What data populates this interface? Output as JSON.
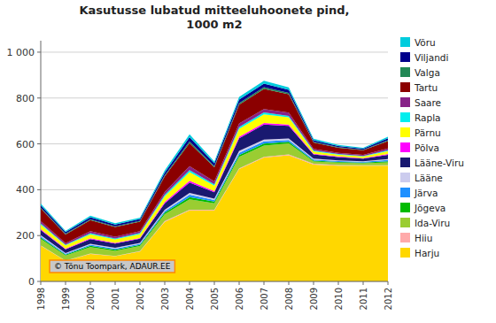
{
  "chart_data": {
    "type": "area",
    "stacked": true,
    "title": "Kasutusse lubatud mitteeluhoonete pind,\n1000 m2",
    "x": [
      1998,
      1999,
      2000,
      2001,
      2002,
      2003,
      2004,
      2005,
      2006,
      2007,
      2008,
      2009,
      2010,
      2011,
      2012
    ],
    "xlim": [
      1998,
      2012
    ],
    "xticks": [
      1998,
      1999,
      2000,
      2001,
      2002,
      2003,
      2004,
      2005,
      2006,
      2007,
      2008,
      2009,
      2010,
      2011,
      2012
    ],
    "ylim": [
      0,
      1050
    ],
    "yticks": [
      0,
      200,
      400,
      600,
      800,
      {
        "value": 1000,
        "label": "1 000"
      }
    ],
    "grid": true,
    "legend": "right",
    "annotations": [
      "© Tõnu Toompark, ADAUR.EE"
    ],
    "series": [
      {
        "name": "Harju",
        "color": "#FFD700",
        "values": [
          155,
          90,
          120,
          110,
          130,
          260,
          310,
          310,
          490,
          540,
          550,
          510,
          505,
          505,
          505
        ]
      },
      {
        "name": "Hiiu",
        "color": "#FFAAAA",
        "values": [
          2,
          1,
          2,
          1,
          2,
          3,
          3,
          3,
          3,
          3,
          4,
          3,
          3,
          2,
          2
        ]
      },
      {
        "name": "Ida-Viru",
        "color": "#9ACD32",
        "values": [
          28,
          22,
          28,
          22,
          22,
          30,
          45,
          28,
          50,
          50,
          48,
          10,
          10,
          8,
          12
        ]
      },
      {
        "name": "Jõgeva",
        "color": "#00BB00",
        "values": [
          6,
          4,
          5,
          5,
          5,
          7,
          10,
          7,
          8,
          8,
          7,
          4,
          3,
          3,
          5
        ]
      },
      {
        "name": "Järva",
        "color": "#1E90FF",
        "values": [
          6,
          4,
          5,
          5,
          5,
          7,
          10,
          7,
          10,
          10,
          8,
          5,
          4,
          4,
          6
        ]
      },
      {
        "name": "Lääne",
        "color": "#CCCCEE",
        "values": [
          5,
          3,
          4,
          4,
          4,
          6,
          8,
          6,
          8,
          8,
          6,
          4,
          3,
          2,
          4
        ]
      },
      {
        "name": "Lääne-Viru",
        "color": "#191970",
        "values": [
          22,
          16,
          20,
          18,
          18,
          28,
          45,
          28,
          55,
          65,
          55,
          18,
          14,
          12,
          18
        ]
      },
      {
        "name": "Põlva",
        "color": "#FF00FF",
        "values": [
          4,
          3,
          4,
          3,
          3,
          5,
          8,
          5,
          7,
          7,
          6,
          3,
          3,
          2,
          4
        ]
      },
      {
        "name": "Pärnu",
        "color": "#FFFF00",
        "values": [
          20,
          14,
          18,
          15,
          18,
          26,
          38,
          24,
          35,
          38,
          32,
          10,
          8,
          7,
          12
        ]
      },
      {
        "name": "Rapla",
        "color": "#00EEEE",
        "values": [
          5,
          3,
          4,
          4,
          4,
          6,
          8,
          6,
          8,
          8,
          6,
          4,
          3,
          2,
          4
        ]
      },
      {
        "name": "Saare",
        "color": "#882288",
        "values": [
          10,
          7,
          9,
          8,
          8,
          12,
          18,
          12,
          15,
          15,
          14,
          7,
          5,
          5,
          8
        ]
      },
      {
        "name": "Tartu",
        "color": "#8B0000",
        "values": [
          55,
          38,
          48,
          42,
          42,
          68,
          100,
          62,
          82,
          88,
          80,
          28,
          22,
          20,
          32
        ]
      },
      {
        "name": "Valga",
        "color": "#228855",
        "values": [
          4,
          3,
          4,
          3,
          3,
          5,
          8,
          5,
          7,
          7,
          6,
          3,
          3,
          2,
          4
        ]
      },
      {
        "name": "Viljandi",
        "color": "#00008B",
        "values": [
          10,
          7,
          9,
          8,
          8,
          12,
          18,
          12,
          15,
          16,
          14,
          7,
          5,
          5,
          8
        ]
      },
      {
        "name": "Võru",
        "color": "#00CCDD",
        "values": [
          8,
          5,
          7,
          6,
          6,
          9,
          13,
          8,
          12,
          12,
          10,
          6,
          4,
          4,
          7
        ]
      }
    ]
  }
}
